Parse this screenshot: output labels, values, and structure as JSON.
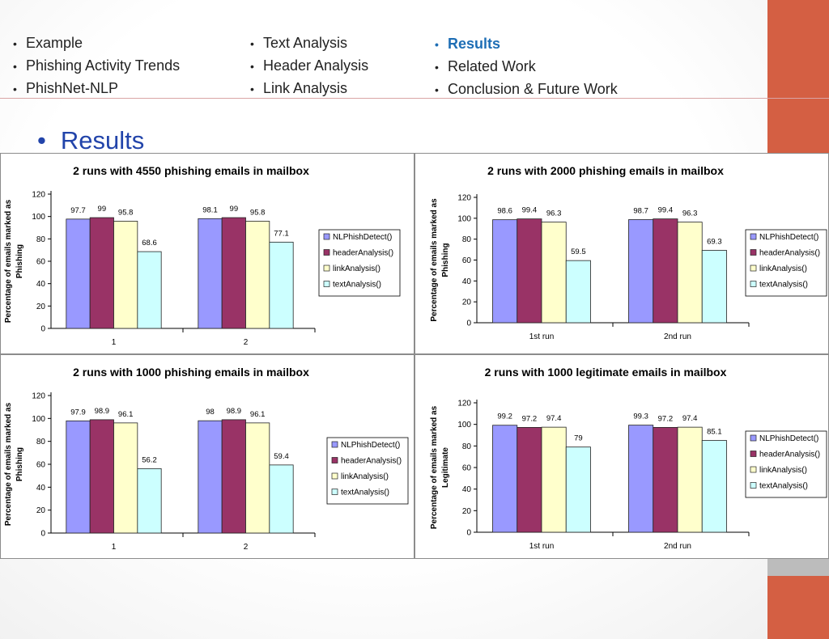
{
  "nav": {
    "col1": [
      "Example",
      "Phishing Activity Trends",
      "PhishNet-NLP"
    ],
    "col2": [
      "Text Analysis",
      "Header Analysis",
      "Link Analysis"
    ],
    "col3": [
      "Results",
      "Related Work",
      "Conclusion & Future Work"
    ],
    "active": "Results"
  },
  "section_heading": "Results",
  "colors": {
    "accent_bar": "#d45f43",
    "series": [
      "#9999ff",
      "#993366",
      "#ffffcc",
      "#ccffff"
    ]
  },
  "chart_data": [
    {
      "type": "bar",
      "title": "2 runs with 4550 phishing emails in mailbox",
      "xlabel": "",
      "ylabel": [
        "Percentage of emails marked as",
        "Phishing"
      ],
      "ylim": [
        0,
        120
      ],
      "yticks": [
        0,
        20,
        40,
        60,
        80,
        100,
        120
      ],
      "categories": [
        "1",
        "2"
      ],
      "legend_position": "right",
      "series": [
        {
          "name": "NLPhishDetect()",
          "values": [
            97.7,
            98.1
          ]
        },
        {
          "name": "headerAnalysis()",
          "values": [
            99,
            99
          ]
        },
        {
          "name": "linkAnalysis()",
          "values": [
            95.8,
            95.8
          ]
        },
        {
          "name": "textAnalysis()",
          "values": [
            68.6,
            77.1
          ]
        }
      ]
    },
    {
      "type": "bar",
      "title": "2 runs with 2000 phishing emails in mailbox",
      "xlabel": "",
      "ylabel": [
        "Percentage of emails marked as",
        "Phishing"
      ],
      "ylim": [
        0,
        120
      ],
      "yticks": [
        0,
        20,
        40,
        60,
        80,
        100,
        120
      ],
      "categories": [
        "1st run",
        "2nd run"
      ],
      "legend_position": "right",
      "series": [
        {
          "name": "NLPhishDetect()",
          "values": [
            98.6,
            98.7
          ]
        },
        {
          "name": "headerAnalysis()",
          "values": [
            99.4,
            99.4
          ]
        },
        {
          "name": "linkAnalysis()",
          "values": [
            96.3,
            96.3
          ]
        },
        {
          "name": "textAnalysis()",
          "values": [
            59.5,
            69.3
          ]
        }
      ]
    },
    {
      "type": "bar",
      "title": "2 runs with 1000 phishing emails in mailbox",
      "xlabel": "",
      "ylabel": [
        "Percentage of emails marked as",
        "Phishing"
      ],
      "ylim": [
        0,
        120
      ],
      "yticks": [
        0,
        20,
        40,
        60,
        80,
        100,
        120
      ],
      "categories": [
        "1",
        "2"
      ],
      "legend_position": "right",
      "series": [
        {
          "name": "NLPhishDetect()",
          "values": [
            97.9,
            98
          ]
        },
        {
          "name": "headerAnalysis()",
          "values": [
            98.9,
            98.9
          ]
        },
        {
          "name": "linkAnalysis()",
          "values": [
            96.1,
            96.1
          ]
        },
        {
          "name": "textAnalysis()",
          "values": [
            56.2,
            59.4
          ]
        }
      ]
    },
    {
      "type": "bar",
      "title": "2 runs with 1000 legitimate emails in mailbox",
      "xlabel": "",
      "ylabel": [
        "Percentage of emails marked as",
        "Legitimate"
      ],
      "ylim": [
        0,
        120
      ],
      "yticks": [
        0,
        20,
        40,
        60,
        80,
        100,
        120
      ],
      "categories": [
        "1st run",
        "2nd run"
      ],
      "legend_position": "right",
      "series": [
        {
          "name": "NLPhishDetect()",
          "values": [
            99.2,
            99.3
          ]
        },
        {
          "name": "headerAnalysis()",
          "values": [
            97.2,
            97.2
          ]
        },
        {
          "name": "linkAnalysis()",
          "values": [
            97.4,
            97.4
          ]
        },
        {
          "name": "textAnalysis()",
          "values": [
            79,
            85.1
          ]
        }
      ]
    }
  ]
}
